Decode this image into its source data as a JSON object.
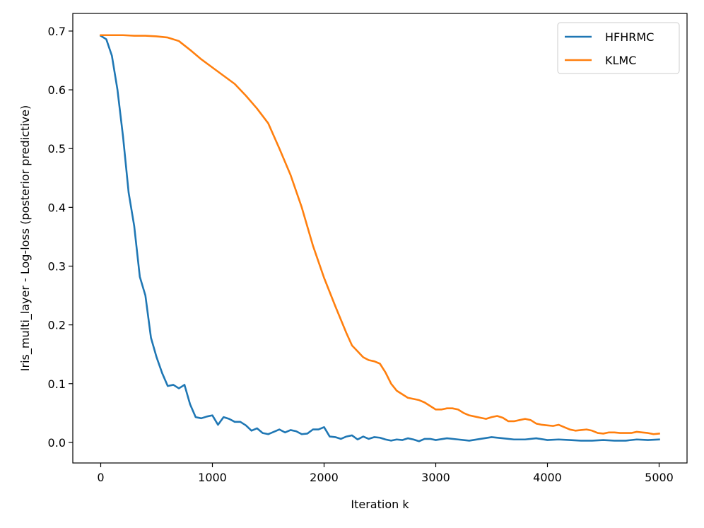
{
  "chart_data": {
    "type": "line",
    "xlabel": "Iteration k",
    "ylabel": "Iris_multi_layer - Log-loss (posterior predictive)",
    "xlim": [
      -250,
      5250
    ],
    "ylim": [
      -0.035,
      0.73
    ],
    "xticks": [
      0,
      1000,
      2000,
      3000,
      4000,
      5000
    ],
    "xtick_labels": [
      "0",
      "1000",
      "2000",
      "3000",
      "4000",
      "5000"
    ],
    "yticks": [
      0.0,
      0.1,
      0.2,
      0.3,
      0.4,
      0.5,
      0.6,
      0.7
    ],
    "ytick_labels": [
      "0.0",
      "0.1",
      "0.2",
      "0.3",
      "0.4",
      "0.5",
      "0.6",
      "0.7"
    ],
    "grid": false,
    "legend_position": "top-right",
    "series": [
      {
        "name": "HFHRMC",
        "color": "#1f77b4",
        "x": [
          0,
          50,
          100,
          150,
          200,
          250,
          300,
          350,
          400,
          450,
          500,
          550,
          600,
          650,
          700,
          750,
          800,
          850,
          900,
          950,
          1000,
          1050,
          1100,
          1150,
          1200,
          1250,
          1300,
          1350,
          1400,
          1450,
          1500,
          1550,
          1600,
          1650,
          1700,
          1750,
          1800,
          1850,
          1900,
          1950,
          2000,
          2050,
          2100,
          2150,
          2200,
          2250,
          2300,
          2350,
          2400,
          2450,
          2500,
          2550,
          2600,
          2650,
          2700,
          2750,
          2800,
          2850,
          2900,
          2950,
          3000,
          3100,
          3200,
          3300,
          3400,
          3500,
          3600,
          3700,
          3800,
          3900,
          4000,
          4100,
          4200,
          4300,
          4400,
          4500,
          4600,
          4700,
          4800,
          4900,
          5000
        ],
        "values": [
          0.692,
          0.686,
          0.658,
          0.6,
          0.52,
          0.425,
          0.368,
          0.282,
          0.25,
          0.178,
          0.145,
          0.118,
          0.096,
          0.098,
          0.092,
          0.098,
          0.065,
          0.043,
          0.041,
          0.044,
          0.046,
          0.03,
          0.043,
          0.04,
          0.035,
          0.035,
          0.029,
          0.02,
          0.024,
          0.016,
          0.014,
          0.018,
          0.022,
          0.017,
          0.021,
          0.019,
          0.014,
          0.015,
          0.022,
          0.022,
          0.026,
          0.01,
          0.009,
          0.006,
          0.01,
          0.012,
          0.005,
          0.01,
          0.006,
          0.009,
          0.008,
          0.005,
          0.003,
          0.005,
          0.004,
          0.007,
          0.005,
          0.002,
          0.006,
          0.006,
          0.004,
          0.007,
          0.005,
          0.003,
          0.006,
          0.009,
          0.007,
          0.005,
          0.005,
          0.007,
          0.004,
          0.005,
          0.004,
          0.003,
          0.003,
          0.004,
          0.003,
          0.003,
          0.005,
          0.004,
          0.005
        ]
      },
      {
        "name": "KLMC",
        "color": "#ff7f0e",
        "x": [
          0,
          100,
          200,
          300,
          400,
          500,
          600,
          700,
          800,
          900,
          1000,
          1100,
          1200,
          1300,
          1400,
          1500,
          1600,
          1700,
          1800,
          1900,
          2000,
          2100,
          2200,
          2250,
          2300,
          2350,
          2400,
          2450,
          2500,
          2550,
          2600,
          2650,
          2700,
          2750,
          2800,
          2850,
          2900,
          2950,
          3000,
          3050,
          3100,
          3150,
          3200,
          3250,
          3300,
          3350,
          3400,
          3450,
          3500,
          3550,
          3600,
          3650,
          3700,
          3750,
          3800,
          3850,
          3900,
          3950,
          4000,
          4050,
          4100,
          4150,
          4200,
          4250,
          4300,
          4350,
          4400,
          4450,
          4500,
          4550,
          4600,
          4650,
          4700,
          4750,
          4800,
          4850,
          4900,
          4950,
          5000
        ],
        "values": [
          0.693,
          0.693,
          0.693,
          0.692,
          0.692,
          0.691,
          0.689,
          0.683,
          0.668,
          0.652,
          0.638,
          0.624,
          0.61,
          0.59,
          0.568,
          0.543,
          0.5,
          0.455,
          0.4,
          0.335,
          0.28,
          0.232,
          0.186,
          0.165,
          0.155,
          0.145,
          0.14,
          0.138,
          0.134,
          0.119,
          0.1,
          0.088,
          0.082,
          0.076,
          0.074,
          0.072,
          0.068,
          0.062,
          0.056,
          0.056,
          0.058,
          0.058,
          0.056,
          0.05,
          0.046,
          0.044,
          0.042,
          0.04,
          0.043,
          0.045,
          0.042,
          0.036,
          0.036,
          0.038,
          0.04,
          0.038,
          0.032,
          0.03,
          0.029,
          0.028,
          0.03,
          0.026,
          0.022,
          0.02,
          0.021,
          0.022,
          0.02,
          0.016,
          0.015,
          0.017,
          0.017,
          0.016,
          0.016,
          0.016,
          0.018,
          0.017,
          0.016,
          0.014,
          0.015
        ]
      }
    ]
  }
}
